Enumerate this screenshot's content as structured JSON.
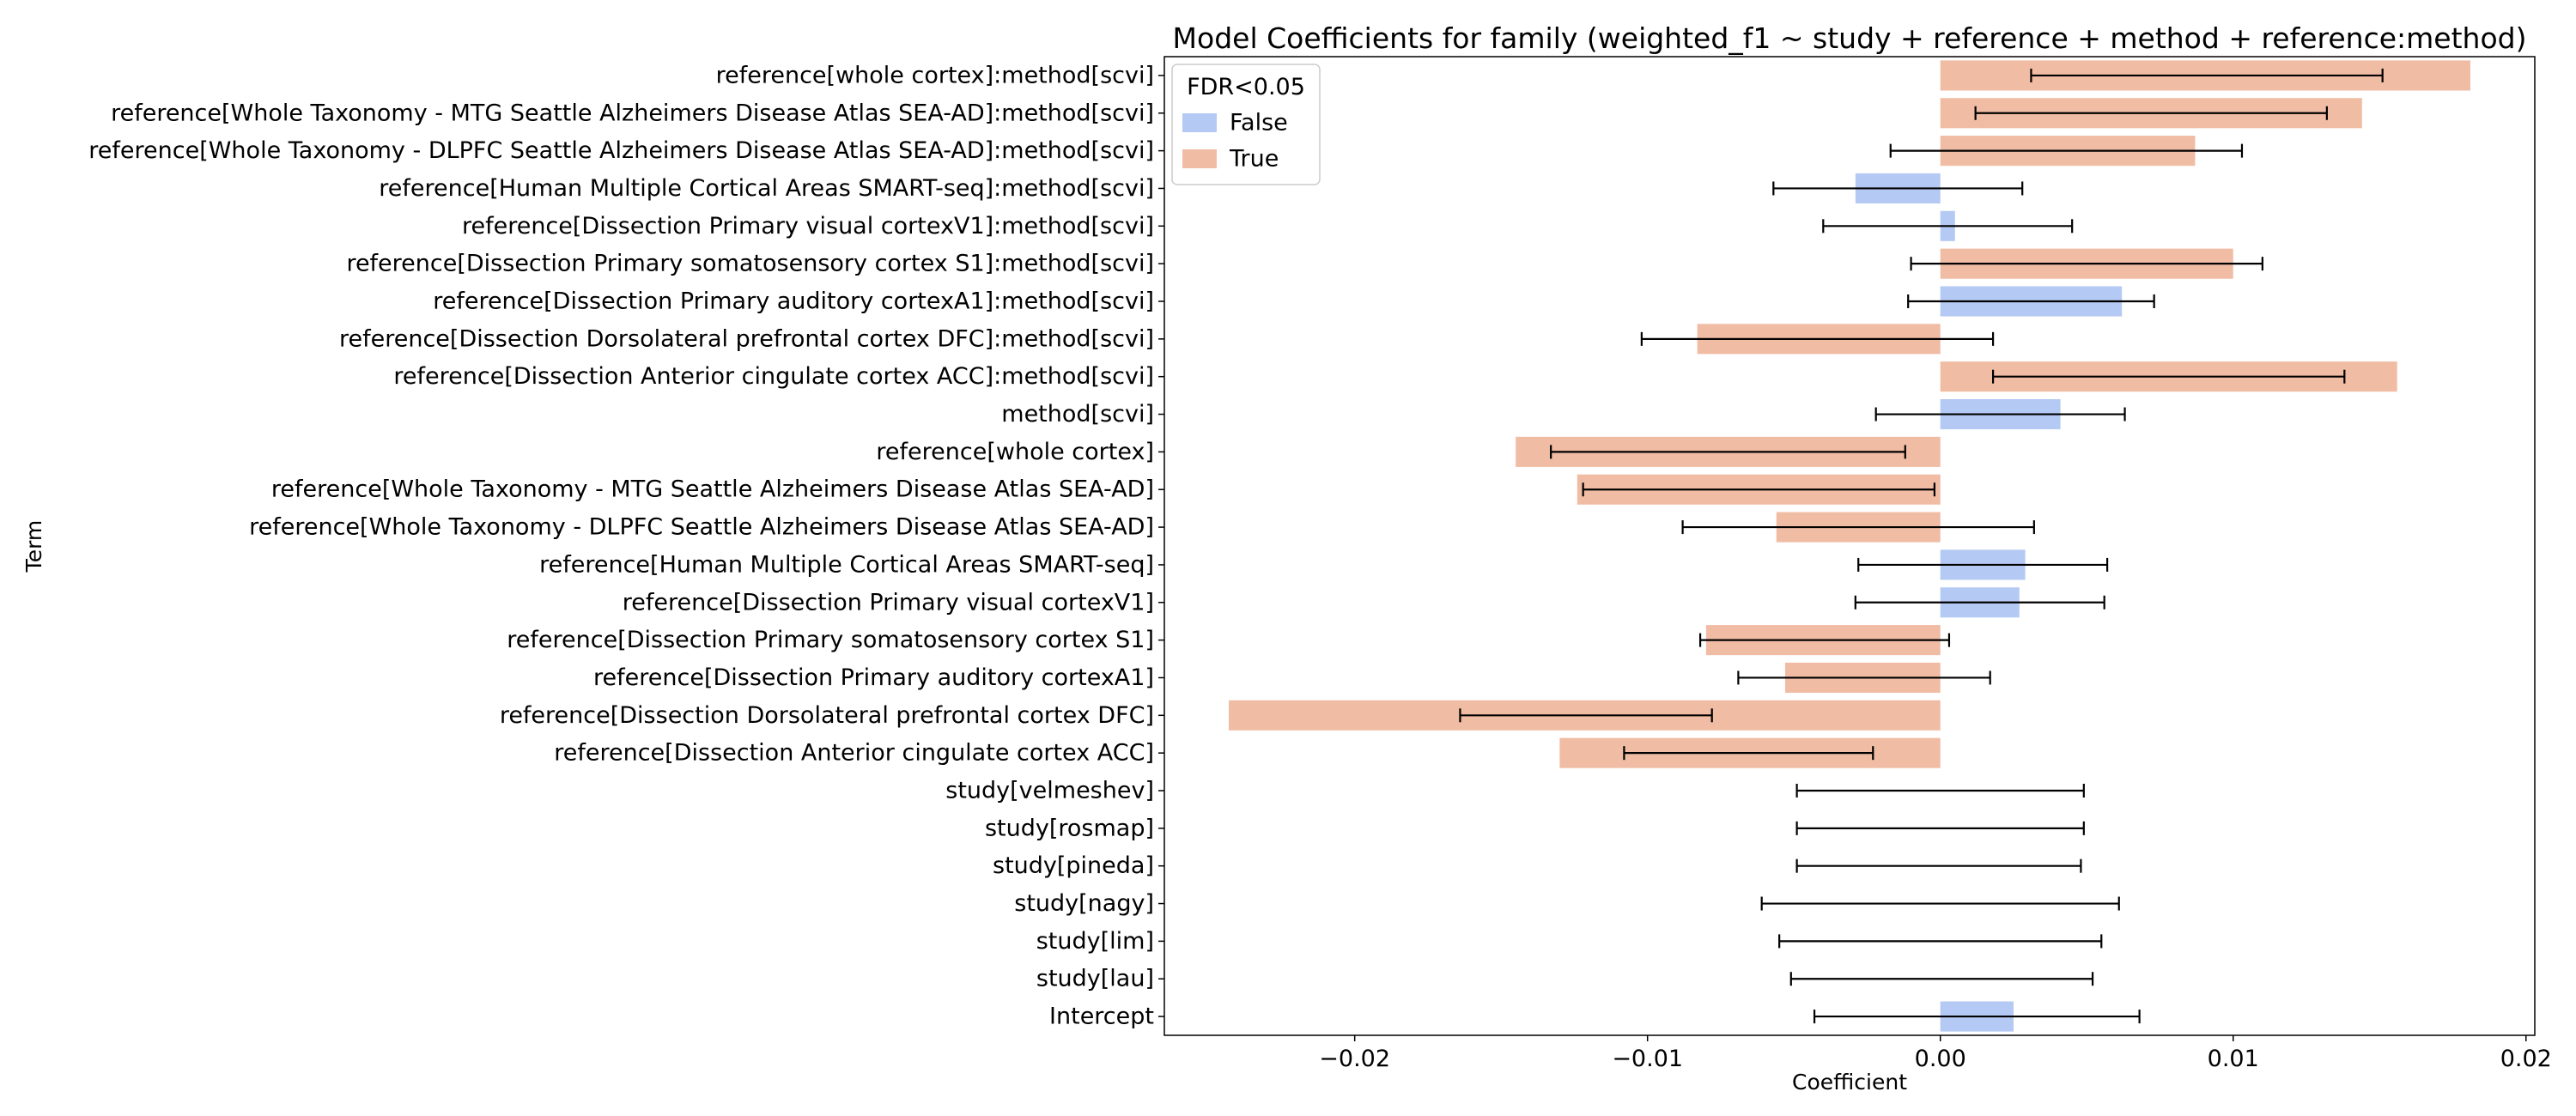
{
  "chart_data": {
    "type": "bar",
    "orientation": "horizontal",
    "title": "Model Coefficients for family (weighted_f1 ~ study + reference + method + reference:method)",
    "xlabel": "Coefficient",
    "ylabel": "Term",
    "xlim": [
      -0.0265,
      0.0203
    ],
    "x_ticks": [
      -0.02,
      -0.01,
      0.0,
      0.01,
      0.02
    ],
    "x_tick_labels": [
      "−0.02",
      "−0.01",
      "0.00",
      "0.01",
      "0.02"
    ],
    "grid": false,
    "legend": {
      "title": "FDR<0.05",
      "placement": "top-left",
      "entries": [
        {
          "label": "False",
          "color": "#b4c9f3"
        },
        {
          "label": "True",
          "color": "#f1bca4"
        }
      ]
    },
    "terms": [
      {
        "term": "reference[whole cortex]:method[scvi]",
        "coef": 0.0181,
        "ci": [
          0.0031,
          0.0151
        ],
        "fdr": "True"
      },
      {
        "term": "reference[Whole Taxonomy - MTG Seattle Alzheimers Disease Atlas SEA-AD]:method[scvi]",
        "coef": 0.0144,
        "ci": [
          0.0012,
          0.0132
        ],
        "fdr": "True"
      },
      {
        "term": "reference[Whole Taxonomy - DLPFC Seattle Alzheimers Disease Atlas SEA-AD]:method[scvi]",
        "coef": 0.0087,
        "ci": [
          -0.0017,
          0.0103
        ],
        "fdr": "True"
      },
      {
        "term": "reference[Human Multiple Cortical Areas SMART-seq]:method[scvi]",
        "coef": -0.0029,
        "ci": [
          -0.0057,
          0.0028
        ],
        "fdr": "False"
      },
      {
        "term": "reference[Dissection Primary visual cortexV1]:method[scvi]",
        "coef": 0.0005,
        "ci": [
          -0.004,
          0.0045
        ],
        "fdr": "False"
      },
      {
        "term": "reference[Dissection Primary somatosensory cortex S1]:method[scvi]",
        "coef": 0.01,
        "ci": [
          -0.001,
          0.011
        ],
        "fdr": "True"
      },
      {
        "term": "reference[Dissection Primary auditory cortexA1]:method[scvi]",
        "coef": 0.0062,
        "ci": [
          -0.0011,
          0.0073
        ],
        "fdr": "False"
      },
      {
        "term": "reference[Dissection Dorsolateral prefrontal cortex DFC]:method[scvi]",
        "coef": -0.0083,
        "ci": [
          -0.0102,
          0.0018
        ],
        "fdr": "True"
      },
      {
        "term": "reference[Dissection Anterior cingulate cortex ACC]:method[scvi]",
        "coef": 0.0156,
        "ci": [
          0.0018,
          0.0138
        ],
        "fdr": "True"
      },
      {
        "term": "method[scvi]",
        "coef": 0.0041,
        "ci": [
          -0.0022,
          0.0063
        ],
        "fdr": "False"
      },
      {
        "term": "reference[whole cortex]",
        "coef": -0.0145,
        "ci": [
          -0.0133,
          -0.0012
        ],
        "fdr": "True"
      },
      {
        "term": "reference[Whole Taxonomy - MTG Seattle Alzheimers Disease Atlas SEA-AD]",
        "coef": -0.0124,
        "ci": [
          -0.0122,
          -0.0002
        ],
        "fdr": "True"
      },
      {
        "term": "reference[Whole Taxonomy - DLPFC Seattle Alzheimers Disease Atlas SEA-AD]",
        "coef": -0.0056,
        "ci": [
          -0.0088,
          0.0032
        ],
        "fdr": "True"
      },
      {
        "term": "reference[Human Multiple Cortical Areas SMART-seq]",
        "coef": 0.0029,
        "ci": [
          -0.0028,
          0.0057
        ],
        "fdr": "False"
      },
      {
        "term": "reference[Dissection Primary visual cortexV1]",
        "coef": 0.0027,
        "ci": [
          -0.0029,
          0.0056
        ],
        "fdr": "False"
      },
      {
        "term": "reference[Dissection Primary somatosensory cortex S1]",
        "coef": -0.008,
        "ci": [
          -0.0082,
          0.0003
        ],
        "fdr": "True"
      },
      {
        "term": "reference[Dissection Primary auditory cortexA1]",
        "coef": -0.0053,
        "ci": [
          -0.0069,
          0.0017
        ],
        "fdr": "True"
      },
      {
        "term": "reference[Dissection Dorsolateral prefrontal cortex DFC]",
        "coef": -0.0243,
        "ci": [
          -0.0164,
          -0.0078
        ],
        "fdr": "True"
      },
      {
        "term": "reference[Dissection Anterior cingulate cortex ACC]",
        "coef": -0.013,
        "ci": [
          -0.0108,
          -0.0023
        ],
        "fdr": "True"
      },
      {
        "term": "study[velmeshev]",
        "coef": 0.0,
        "ci": [
          -0.0049,
          0.0049
        ],
        "fdr": "True"
      },
      {
        "term": "study[rosmap]",
        "coef": 0.0,
        "ci": [
          -0.0049,
          0.0049
        ],
        "fdr": "True"
      },
      {
        "term": "study[pineda]",
        "coef": 0.0,
        "ci": [
          -0.0049,
          0.0048
        ],
        "fdr": "True"
      },
      {
        "term": "study[nagy]",
        "coef": 0.0,
        "ci": [
          -0.0061,
          0.0061
        ],
        "fdr": "True"
      },
      {
        "term": "study[lim]",
        "coef": 0.0,
        "ci": [
          -0.0055,
          0.0055
        ],
        "fdr": "True"
      },
      {
        "term": "study[lau]",
        "coef": 0.0,
        "ci": [
          -0.0051,
          0.0052
        ],
        "fdr": "True"
      },
      {
        "term": "Intercept",
        "coef": 0.0025,
        "ci": [
          -0.0043,
          0.0068
        ],
        "fdr": "False"
      }
    ]
  }
}
